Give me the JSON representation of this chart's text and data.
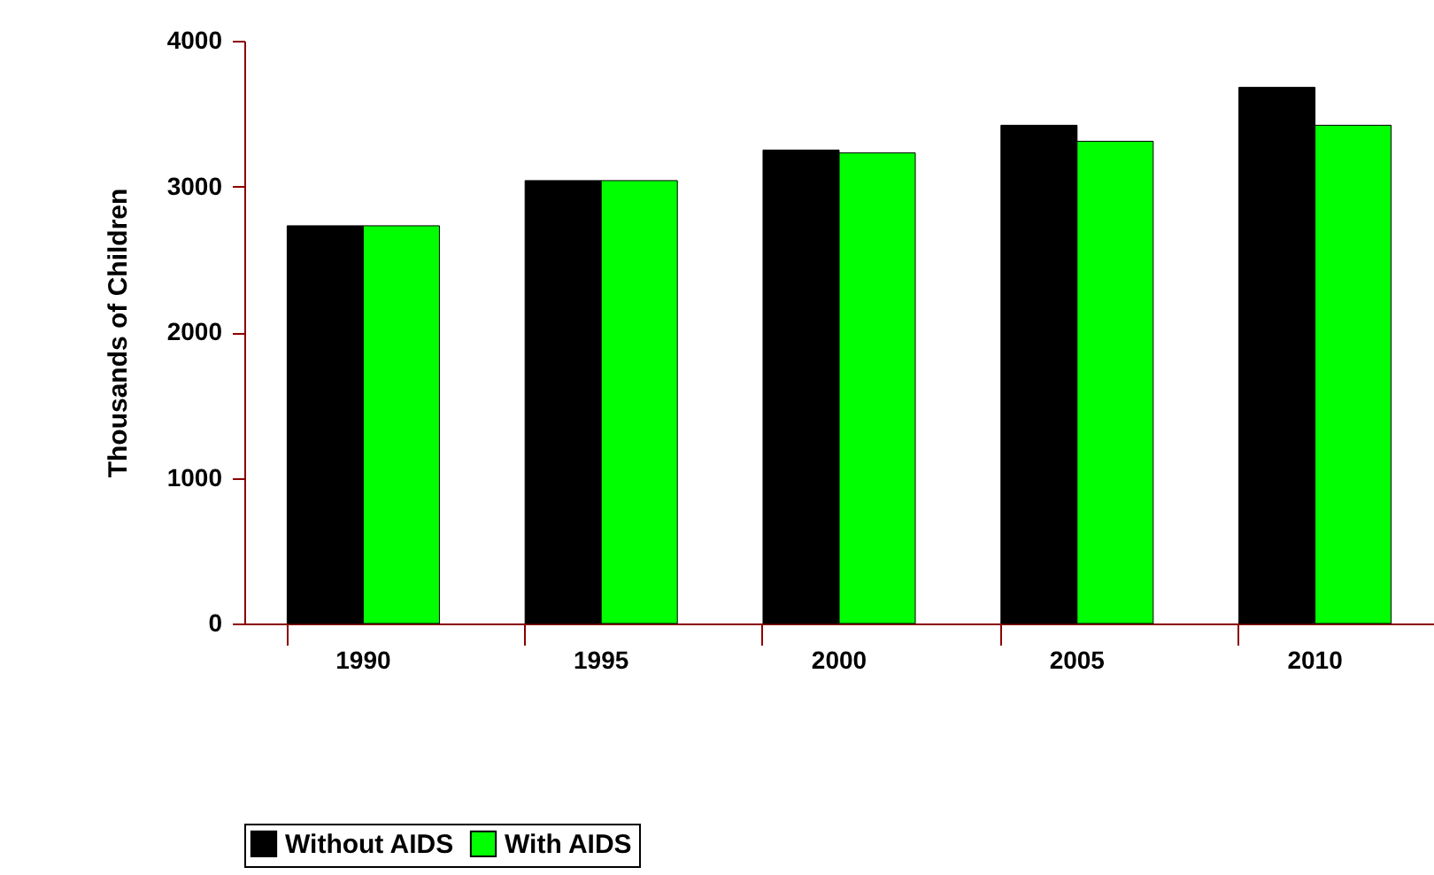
{
  "chart_data": {
    "type": "bar",
    "ylabel": "Thousands of Children",
    "categories": [
      "1990",
      "1995",
      "2000",
      "2005",
      "2010"
    ],
    "series": [
      {
        "name": "Without AIDS",
        "color": "#000000",
        "values": [
          2730,
          3040,
          3250,
          3420,
          3680
        ]
      },
      {
        "name": "With AIDS",
        "color": "#00ff00",
        "values": [
          2730,
          3040,
          3230,
          3310,
          3420
        ]
      }
    ],
    "ylim": [
      0,
      4000
    ],
    "yticks": [
      0,
      1000,
      2000,
      3000,
      4000
    ],
    "grid": false,
    "legend": "bottom"
  }
}
